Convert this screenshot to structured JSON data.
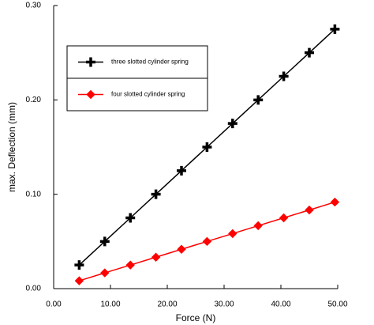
{
  "chart_data": {
    "type": "line",
    "xlabel": "Force (N)",
    "ylabel": "max. Deflection (mm)",
    "x": [
      4.5,
      9,
      13.5,
      18,
      22.5,
      27,
      31.5,
      36,
      40.5,
      45,
      49.5
    ],
    "series": [
      {
        "name": "three slotted cylinder spring",
        "color": "#000000",
        "marker": "plus",
        "values": [
          0.025,
          0.05,
          0.075,
          0.1,
          0.125,
          0.15,
          0.175,
          0.2,
          0.225,
          0.25,
          0.275
        ]
      },
      {
        "name": "four slotted cylinder spring",
        "color": "#ff0000",
        "marker": "diamond",
        "values": [
          0.0083,
          0.0167,
          0.025,
          0.0333,
          0.0417,
          0.05,
          0.0583,
          0.0667,
          0.075,
          0.0833,
          0.0917
        ]
      }
    ],
    "xlim": [
      0,
      50
    ],
    "ylim": [
      0,
      0.3
    ],
    "xticks": [
      {
        "value": 0,
        "label": "0.00"
      },
      {
        "value": 10,
        "label": "10.00"
      },
      {
        "value": 20,
        "label": "20.00"
      },
      {
        "value": 30,
        "label": "30.00"
      },
      {
        "value": 40,
        "label": "40.00"
      },
      {
        "value": 50,
        "label": "50.00"
      }
    ],
    "yticks": [
      {
        "value": 0,
        "label": "0.00"
      },
      {
        "value": 0.1,
        "label": "0.10"
      },
      {
        "value": 0.2,
        "label": "0.20"
      },
      {
        "value": 0.3,
        "label": "0.30"
      }
    ],
    "legend": "upper left"
  }
}
